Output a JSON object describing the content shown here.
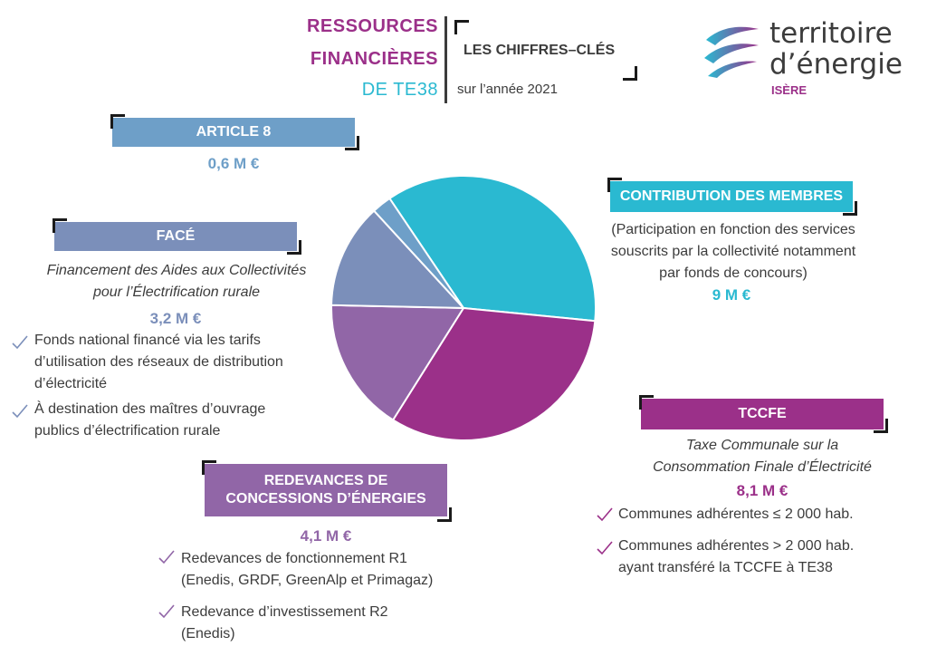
{
  "header": {
    "title_line1": "RESSOURCES",
    "title_line2": "FINANCIÈRES",
    "title_line3": "DE TE38",
    "subtitle": "LES CHIFFRES–CLÉS",
    "year_text": "sur l’année 2021"
  },
  "brand": {
    "line1": "territoire",
    "line2": "d’énergie",
    "region": "ISÈRE"
  },
  "colors": {
    "article8": "#6e9fc8",
    "face": "#7b8fba",
    "contribution": "#2ab9d1",
    "tccfe": "#9b3089",
    "redevances": "#9166a7",
    "text": "#3c3c3c"
  },
  "sections": {
    "article8": {
      "label": "ARTICLE 8",
      "amount": "0,6 M €"
    },
    "face": {
      "label": "FACÉ",
      "desc1": "Financement des Aides aux Collectivités",
      "desc2": "pour l’Électrification rurale",
      "amount": "3,2 M €",
      "bullets": [
        [
          "Fonds national financé via les tarifs",
          "d’utilisation des réseaux de distribution",
          "d’électricité"
        ],
        [
          "À destination des maîtres d’ouvrage",
          "publics d’électrification rurale"
        ]
      ]
    },
    "contribution": {
      "label": "CONTRIBUTION DES MEMBRES",
      "desc1": "(Participation en fonction des services",
      "desc2": "souscrits par la collectivité notamment",
      "desc3": "par fonds de concours)",
      "amount": "9 M €"
    },
    "tccfe": {
      "label": "TCCFE",
      "desc1": "Taxe Communale sur la",
      "desc2": "Consommation Finale d’Électricité",
      "amount": "8,1 M €",
      "bullets": [
        [
          "Communes adhérentes ≤ 2 000 hab."
        ],
        [
          "Communes adhérentes > 2 000 hab.",
          "ayant transféré la TCCFE à TE38"
        ]
      ]
    },
    "redevances": {
      "label1": "REDEVANCES DE",
      "label2": "CONCESSIONS D’ÉNERGIES",
      "amount": "4,1 M €",
      "bullets": [
        [
          "Redevances de fonctionnement R1",
          "(Enedis, GRDF, GreenAlp et Primagaz)"
        ],
        [
          "Redevance d’investissement R2",
          "(Enedis)"
        ]
      ]
    }
  },
  "chart_data": {
    "type": "pie",
    "unit": "M €",
    "slices": [
      {
        "label": "CONTRIBUTION DES MEMBRES",
        "value": 9.0,
        "color": "#2ab9d1"
      },
      {
        "label": "TCCFE",
        "value": 8.1,
        "color": "#9b3089"
      },
      {
        "label": "REDEVANCES DE CONCESSIONS D’ÉNERGIES",
        "value": 4.1,
        "color": "#9166a7"
      },
      {
        "label": "FACÉ",
        "value": 3.2,
        "color": "#7b8fba"
      },
      {
        "label": "ARTICLE 8",
        "value": 0.6,
        "color": "#6e9fc8"
      }
    ]
  }
}
